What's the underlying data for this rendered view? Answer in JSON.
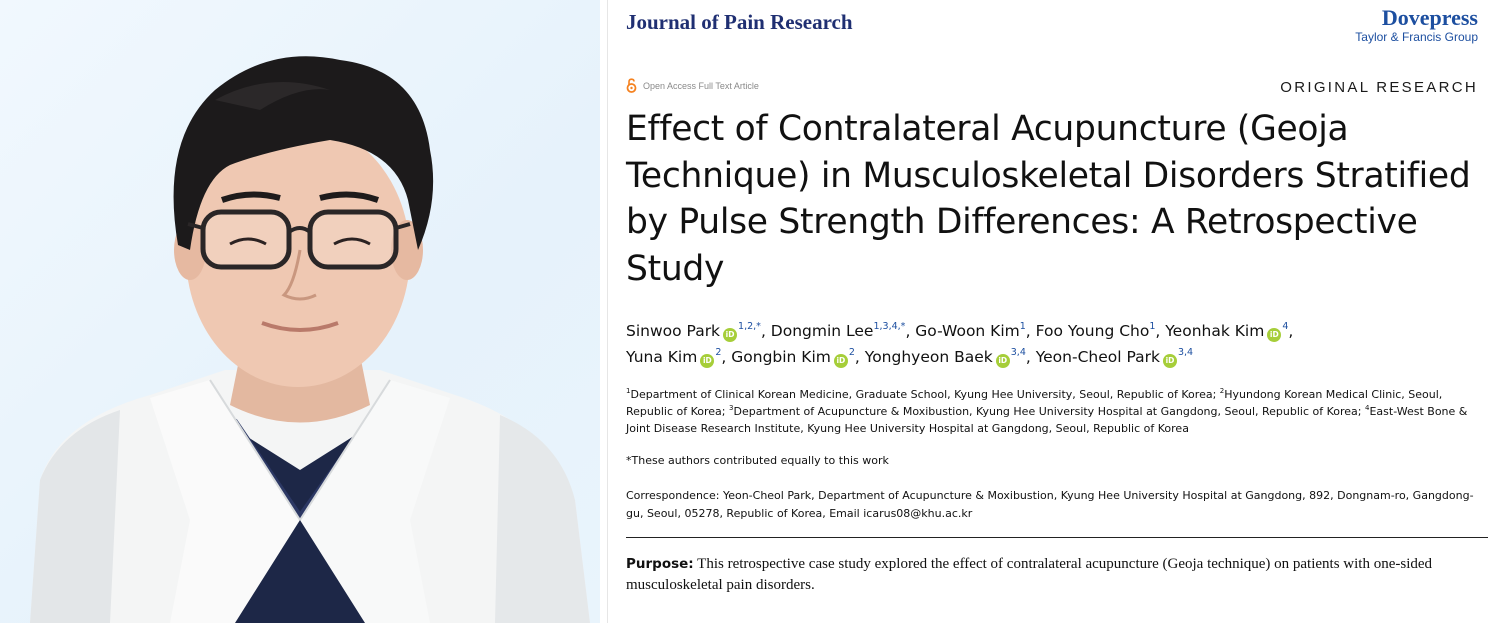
{
  "photo": {
    "subject": "portrait-photo"
  },
  "header": {
    "journal": "Journal of Pain Research",
    "publisher": "Dovepress",
    "publisher_group": "Taylor & Francis Group"
  },
  "open_access_label": "Open Access Full Text Article",
  "article_type": "ORIGINAL RESEARCH",
  "title": "Effect of Contralateral Acupuncture (Geoja Technique) in Musculoskeletal Disorders Stratified by Pulse Strength Differences: A Retrospective Study",
  "orcid_glyph": "iD",
  "authors": [
    {
      "name": "Sinwoo Park",
      "orcid": true,
      "sup": "1,2,*",
      "sep": ", "
    },
    {
      "name": "Dongmin Lee",
      "orcid": false,
      "sup": "1,3,4,*",
      "sep": ", "
    },
    {
      "name": "Go-Woon Kim",
      "orcid": false,
      "sup": "1",
      "sep": ", "
    },
    {
      "name": "Foo Young Cho",
      "orcid": false,
      "sup": "1",
      "sep": ", "
    },
    {
      "name": "Yeonhak Kim",
      "orcid": true,
      "sup": "4",
      "sep": ","
    },
    {
      "name": "Yuna Kim",
      "orcid": true,
      "sup": "2",
      "sep": ", "
    },
    {
      "name": "Gongbin Kim",
      "orcid": true,
      "sup": "2",
      "sep": ", "
    },
    {
      "name": "Yonghyeon Baek",
      "orcid": true,
      "sup": "3,4",
      "sep": ", "
    },
    {
      "name": "Yeon-Cheol Park",
      "orcid": true,
      "sup": "3,4",
      "sep": ""
    }
  ],
  "affiliations": [
    {
      "num": "1",
      "text": "Department of Clinical Korean Medicine, Graduate School, Kyung Hee University, Seoul, Republic of Korea; "
    },
    {
      "num": "2",
      "text": "Hyundong Korean Medical Clinic, Seoul, Republic of Korea; "
    },
    {
      "num": "3",
      "text": "Department of Acupuncture & Moxibustion, Kyung Hee University Hospital at Gangdong, Seoul, Republic of Korea; "
    },
    {
      "num": "4",
      "text": "East-West Bone & Joint Disease Research Institute, Kyung Hee University Hospital at Gangdong, Seoul, Republic of Korea"
    }
  ],
  "equal_contribution": "*These authors contributed equally to this work",
  "correspondence": "Correspondence: Yeon-Cheol Park, Department of Acupuncture & Moxibustion, Kyung Hee University Hospital at Gangdong, 892, Dongnam-ro, Gangdong-gu, Seoul, 05278, Republic of Korea, Email icarus08@khu.ac.kr",
  "abstract": {
    "label": "Purpose:",
    "text": " This retrospective case study explored the effect of contralateral acupuncture (Geoja technique) on patients with one-sided musculoskeletal pain disorders."
  },
  "colors": {
    "journal_navy": "#1f2f72",
    "publisher_blue": "#1d4fa0",
    "orcid_green": "#a6ce39",
    "open_access_orange": "#f58220"
  }
}
